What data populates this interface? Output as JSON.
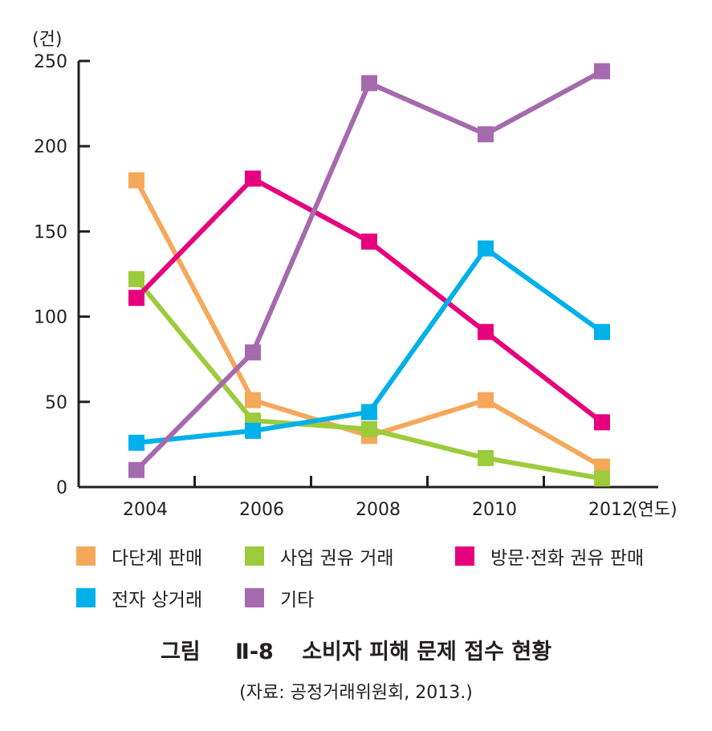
{
  "chart_data": {
    "type": "line",
    "title": "",
    "xlabel": "(연도)",
    "ylabel": "(건)",
    "ylim": [
      0,
      250
    ],
    "yticks": [
      0,
      50,
      100,
      150,
      200,
      250
    ],
    "x": [
      2004,
      2006,
      2008,
      2010,
      2012
    ],
    "series": [
      {
        "name": "다단계 판매",
        "color": "#f5a85a",
        "values": [
          180,
          51,
          30,
          51,
          12
        ]
      },
      {
        "name": "사업 권유 거래",
        "color": "#9ccb3b",
        "values": [
          122,
          39,
          34,
          17,
          5
        ]
      },
      {
        "name": "방문·전화 권유 판매",
        "color": "#e6007e",
        "values": [
          111,
          181,
          144,
          91,
          38
        ]
      },
      {
        "name": "전자 상거래",
        "color": "#00b0ea",
        "values": [
          26,
          33,
          44,
          140,
          91
        ]
      },
      {
        "name": "기타",
        "color": "#a56aae",
        "values": [
          10,
          79,
          237,
          207,
          244
        ]
      }
    ]
  },
  "caption": {
    "figure_label": "그림",
    "figure_number": "Ⅱ-8",
    "title": "소비자 피해 문제 접수 현황",
    "source": "(자료: 공정거래위원회, 2013.)"
  }
}
